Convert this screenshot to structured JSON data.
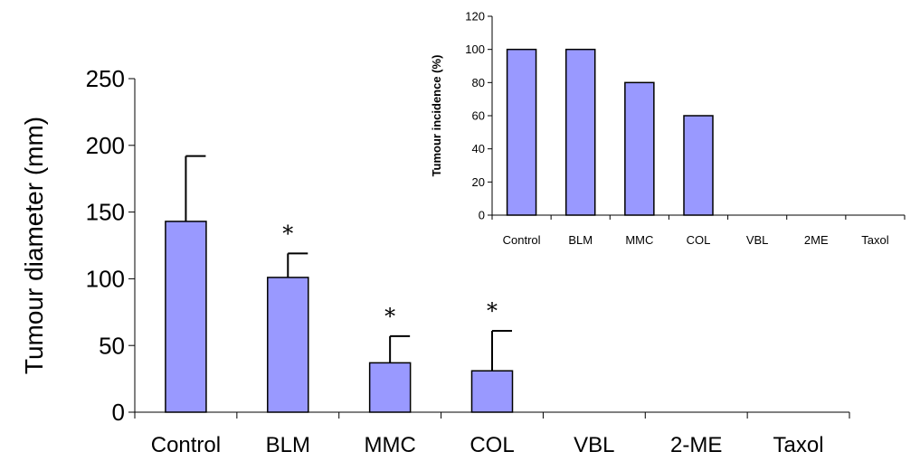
{
  "chart_data": [
    {
      "type": "bar",
      "categories": [
        "Control",
        "BLM",
        "MMC",
        "COL",
        "VBL",
        "2-ME",
        "Taxol"
      ],
      "values": [
        143,
        101,
        37,
        31,
        0,
        0,
        0
      ],
      "error_upper": [
        192,
        119,
        57,
        61,
        null,
        null,
        null
      ],
      "significance": [
        "",
        "*",
        "*",
        "*",
        "",
        "",
        ""
      ],
      "title": "",
      "xlabel": "",
      "ylabel": "Tumour diameter (mm)",
      "ylim": [
        0,
        250
      ],
      "yticks": [
        0,
        50,
        100,
        150,
        200,
        250
      ],
      "bar_color": "#9999ff",
      "grid": false
    },
    {
      "type": "bar",
      "categories": [
        "Control",
        "BLM",
        "MMC",
        "COL",
        "VBL",
        "2ME",
        "Taxol"
      ],
      "values": [
        100,
        100,
        80,
        60,
        0,
        0,
        0
      ],
      "title": "",
      "xlabel": "",
      "ylabel": "Tumour incidence (%)",
      "ylim": [
        0,
        120
      ],
      "yticks": [
        0,
        20,
        40,
        60,
        80,
        100,
        120
      ],
      "bar_color": "#9999ff",
      "grid": false,
      "position": "inset top-right"
    }
  ]
}
